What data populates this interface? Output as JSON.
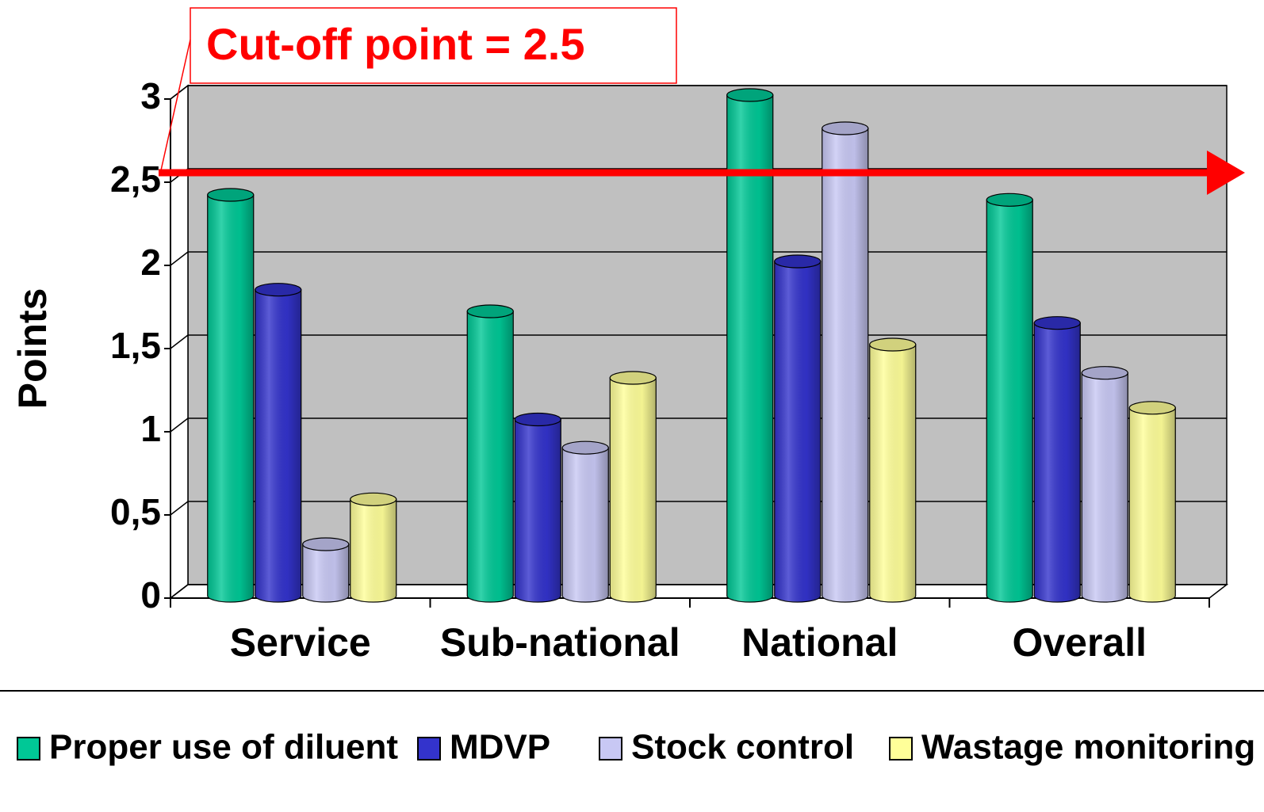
{
  "chart_data": {
    "type": "bar3d",
    "annotation": "Cut-off point = 2.5",
    "cutoff": 2.5,
    "y_label": "Points",
    "categories": [
      "Service",
      "Sub-national",
      "National",
      "Overall"
    ],
    "series": [
      {
        "name": "Proper use of diluent",
        "color": "#00c896",
        "values": [
          2.4,
          1.7,
          3.0,
          2.37
        ]
      },
      {
        "name": "MDVP",
        "color": "#3333cc",
        "values": [
          1.83,
          1.05,
          2.0,
          1.63
        ]
      },
      {
        "name": "Stock control",
        "color": "#c8c8f4",
        "values": [
          0.3,
          0.88,
          2.8,
          1.33
        ]
      },
      {
        "name": "Wastage monitoring",
        "color": "#ffff99",
        "values": [
          0.57,
          1.3,
          1.5,
          1.12
        ]
      }
    ],
    "ylim": [
      0,
      3
    ],
    "yticks": [
      0,
      {
        "value": 0.5,
        "label": "0,5"
      },
      1,
      {
        "value": 1.5,
        "label": "1,5"
      },
      2,
      {
        "value": 2.5,
        "label": "2,5"
      },
      3
    ],
    "grid": true,
    "legend": "bottom",
    "wall_color": "#c0c0c0",
    "cutoff_color": "#ff0000"
  }
}
